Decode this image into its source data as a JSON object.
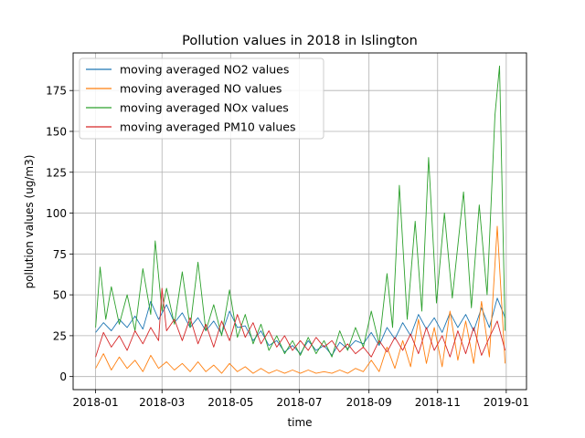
{
  "chart_data": {
    "type": "line",
    "title": "Pollution values in 2018 in Islington",
    "xlabel": "time",
    "ylabel": "pollution values (ug/m3)",
    "xlim": [
      "2017-12-12",
      "2019-01-19"
    ],
    "ylim": [
      -8,
      198
    ],
    "grid": true,
    "legend_position": "upper left",
    "xticks": [
      "2018-01",
      "2018-03",
      "2018-05",
      "2018-07",
      "2018-09",
      "2018-11",
      "2019-01"
    ],
    "yticks": [
      0,
      25,
      50,
      75,
      100,
      125,
      150,
      175
    ],
    "series": [
      {
        "name": "moving averaged NO2 values",
        "color": "#1f77b4",
        "points": [
          [
            "2018-01-01",
            27
          ],
          [
            "2018-01-08",
            33
          ],
          [
            "2018-01-15",
            28
          ],
          [
            "2018-01-22",
            35
          ],
          [
            "2018-01-29",
            30
          ],
          [
            "2018-02-05",
            37
          ],
          [
            "2018-02-12",
            29
          ],
          [
            "2018-02-19",
            46
          ],
          [
            "2018-02-26",
            35
          ],
          [
            "2018-03-05",
            44
          ],
          [
            "2018-03-12",
            33
          ],
          [
            "2018-03-19",
            39
          ],
          [
            "2018-03-26",
            30
          ],
          [
            "2018-04-02",
            36
          ],
          [
            "2018-04-09",
            28
          ],
          [
            "2018-04-16",
            34
          ],
          [
            "2018-04-23",
            26
          ],
          [
            "2018-04-30",
            40
          ],
          [
            "2018-05-07",
            30
          ],
          [
            "2018-05-14",
            31
          ],
          [
            "2018-05-21",
            22
          ],
          [
            "2018-05-28",
            28
          ],
          [
            "2018-06-04",
            19
          ],
          [
            "2018-06-11",
            22
          ],
          [
            "2018-06-18",
            15
          ],
          [
            "2018-06-25",
            19
          ],
          [
            "2018-07-02",
            14
          ],
          [
            "2018-07-09",
            22
          ],
          [
            "2018-07-16",
            16
          ],
          [
            "2018-07-23",
            19
          ],
          [
            "2018-07-30",
            13
          ],
          [
            "2018-08-06",
            21
          ],
          [
            "2018-08-13",
            17
          ],
          [
            "2018-08-20",
            22
          ],
          [
            "2018-08-27",
            20
          ],
          [
            "2018-09-03",
            27
          ],
          [
            "2018-09-10",
            19
          ],
          [
            "2018-09-17",
            30
          ],
          [
            "2018-09-24",
            23
          ],
          [
            "2018-10-01",
            33
          ],
          [
            "2018-10-08",
            25
          ],
          [
            "2018-10-15",
            38
          ],
          [
            "2018-10-22",
            29
          ],
          [
            "2018-10-29",
            36
          ],
          [
            "2018-11-05",
            27
          ],
          [
            "2018-11-12",
            39
          ],
          [
            "2018-11-19",
            30
          ],
          [
            "2018-11-26",
            38
          ],
          [
            "2018-12-03",
            28
          ],
          [
            "2018-12-10",
            42
          ],
          [
            "2018-12-17",
            30
          ],
          [
            "2018-12-24",
            48
          ],
          [
            "2018-12-31",
            36
          ]
        ]
      },
      {
        "name": "moving averaged NO values",
        "color": "#ff7f0e",
        "points": [
          [
            "2018-01-01",
            5
          ],
          [
            "2018-01-08",
            14
          ],
          [
            "2018-01-15",
            4
          ],
          [
            "2018-01-22",
            12
          ],
          [
            "2018-01-29",
            5
          ],
          [
            "2018-02-05",
            10
          ],
          [
            "2018-02-12",
            3
          ],
          [
            "2018-02-19",
            13
          ],
          [
            "2018-02-26",
            5
          ],
          [
            "2018-03-05",
            9
          ],
          [
            "2018-03-12",
            4
          ],
          [
            "2018-03-19",
            8
          ],
          [
            "2018-03-26",
            3
          ],
          [
            "2018-04-02",
            9
          ],
          [
            "2018-04-09",
            3
          ],
          [
            "2018-04-16",
            7
          ],
          [
            "2018-04-23",
            2
          ],
          [
            "2018-04-30",
            8
          ],
          [
            "2018-05-07",
            3
          ],
          [
            "2018-05-14",
            6
          ],
          [
            "2018-05-21",
            2
          ],
          [
            "2018-05-28",
            5
          ],
          [
            "2018-06-04",
            2
          ],
          [
            "2018-06-11",
            4
          ],
          [
            "2018-06-18",
            2
          ],
          [
            "2018-06-25",
            4
          ],
          [
            "2018-07-02",
            2
          ],
          [
            "2018-07-09",
            4
          ],
          [
            "2018-07-16",
            2
          ],
          [
            "2018-07-23",
            3
          ],
          [
            "2018-07-30",
            2
          ],
          [
            "2018-08-06",
            4
          ],
          [
            "2018-08-13",
            2
          ],
          [
            "2018-08-20",
            5
          ],
          [
            "2018-08-27",
            3
          ],
          [
            "2018-09-03",
            10
          ],
          [
            "2018-09-10",
            3
          ],
          [
            "2018-09-17",
            18
          ],
          [
            "2018-09-24",
            5
          ],
          [
            "2018-10-01",
            22
          ],
          [
            "2018-10-08",
            6
          ],
          [
            "2018-10-15",
            35
          ],
          [
            "2018-10-22",
            8
          ],
          [
            "2018-10-29",
            30
          ],
          [
            "2018-11-05",
            6
          ],
          [
            "2018-11-12",
            40
          ],
          [
            "2018-11-19",
            10
          ],
          [
            "2018-11-26",
            34
          ],
          [
            "2018-12-03",
            8
          ],
          [
            "2018-12-10",
            46
          ],
          [
            "2018-12-17",
            12
          ],
          [
            "2018-12-24",
            92
          ],
          [
            "2018-12-31",
            8
          ]
        ]
      },
      {
        "name": "moving averaged NOx values",
        "color": "#2ca02c",
        "points": [
          [
            "2018-01-01",
            30
          ],
          [
            "2018-01-05",
            67
          ],
          [
            "2018-01-10",
            35
          ],
          [
            "2018-01-15",
            55
          ],
          [
            "2018-01-22",
            32
          ],
          [
            "2018-01-29",
            50
          ],
          [
            "2018-02-05",
            28
          ],
          [
            "2018-02-12",
            66
          ],
          [
            "2018-02-19",
            38
          ],
          [
            "2018-02-23",
            83
          ],
          [
            "2018-03-01",
            40
          ],
          [
            "2018-03-05",
            54
          ],
          [
            "2018-03-12",
            32
          ],
          [
            "2018-03-19",
            64
          ],
          [
            "2018-03-26",
            30
          ],
          [
            "2018-04-02",
            70
          ],
          [
            "2018-04-09",
            28
          ],
          [
            "2018-04-16",
            44
          ],
          [
            "2018-04-23",
            25
          ],
          [
            "2018-04-30",
            53
          ],
          [
            "2018-05-07",
            24
          ],
          [
            "2018-05-14",
            38
          ],
          [
            "2018-05-21",
            20
          ],
          [
            "2018-05-28",
            32
          ],
          [
            "2018-06-04",
            16
          ],
          [
            "2018-06-11",
            25
          ],
          [
            "2018-06-18",
            14
          ],
          [
            "2018-06-25",
            22
          ],
          [
            "2018-07-02",
            13
          ],
          [
            "2018-07-09",
            24
          ],
          [
            "2018-07-16",
            14
          ],
          [
            "2018-07-23",
            22
          ],
          [
            "2018-07-30",
            12
          ],
          [
            "2018-08-06",
            28
          ],
          [
            "2018-08-13",
            16
          ],
          [
            "2018-08-20",
            30
          ],
          [
            "2018-08-27",
            18
          ],
          [
            "2018-09-03",
            40
          ],
          [
            "2018-09-10",
            20
          ],
          [
            "2018-09-17",
            63
          ],
          [
            "2018-09-22",
            30
          ],
          [
            "2018-09-28",
            117
          ],
          [
            "2018-10-05",
            35
          ],
          [
            "2018-10-12",
            95
          ],
          [
            "2018-10-18",
            40
          ],
          [
            "2018-10-24",
            134
          ],
          [
            "2018-10-31",
            45
          ],
          [
            "2018-11-07",
            100
          ],
          [
            "2018-11-14",
            48
          ],
          [
            "2018-11-24",
            113
          ],
          [
            "2018-12-01",
            42
          ],
          [
            "2018-12-08",
            105
          ],
          [
            "2018-12-15",
            50
          ],
          [
            "2018-12-22",
            160
          ],
          [
            "2018-12-26",
            190
          ],
          [
            "2018-12-31",
            28
          ]
        ]
      },
      {
        "name": "moving averaged PM10 values",
        "color": "#d62728",
        "points": [
          [
            "2018-01-01",
            12
          ],
          [
            "2018-01-08",
            27
          ],
          [
            "2018-01-15",
            18
          ],
          [
            "2018-01-22",
            25
          ],
          [
            "2018-01-29",
            16
          ],
          [
            "2018-02-05",
            28
          ],
          [
            "2018-02-12",
            20
          ],
          [
            "2018-02-19",
            30
          ],
          [
            "2018-02-26",
            22
          ],
          [
            "2018-03-01",
            54
          ],
          [
            "2018-03-05",
            28
          ],
          [
            "2018-03-12",
            35
          ],
          [
            "2018-03-19",
            22
          ],
          [
            "2018-03-26",
            36
          ],
          [
            "2018-04-02",
            20
          ],
          [
            "2018-04-09",
            32
          ],
          [
            "2018-04-16",
            18
          ],
          [
            "2018-04-23",
            34
          ],
          [
            "2018-04-30",
            22
          ],
          [
            "2018-05-07",
            38
          ],
          [
            "2018-05-14",
            24
          ],
          [
            "2018-05-21",
            33
          ],
          [
            "2018-05-28",
            20
          ],
          [
            "2018-06-04",
            28
          ],
          [
            "2018-06-11",
            18
          ],
          [
            "2018-06-18",
            25
          ],
          [
            "2018-06-25",
            16
          ],
          [
            "2018-07-02",
            22
          ],
          [
            "2018-07-09",
            16
          ],
          [
            "2018-07-16",
            24
          ],
          [
            "2018-07-23",
            18
          ],
          [
            "2018-07-30",
            22
          ],
          [
            "2018-08-06",
            15
          ],
          [
            "2018-08-13",
            20
          ],
          [
            "2018-08-20",
            14
          ],
          [
            "2018-08-27",
            18
          ],
          [
            "2018-09-03",
            12
          ],
          [
            "2018-09-10",
            22
          ],
          [
            "2018-09-17",
            15
          ],
          [
            "2018-09-24",
            24
          ],
          [
            "2018-10-01",
            16
          ],
          [
            "2018-10-08",
            26
          ],
          [
            "2018-10-15",
            14
          ],
          [
            "2018-10-22",
            30
          ],
          [
            "2018-10-29",
            16
          ],
          [
            "2018-11-05",
            25
          ],
          [
            "2018-11-12",
            12
          ],
          [
            "2018-11-19",
            28
          ],
          [
            "2018-11-26",
            14
          ],
          [
            "2018-12-03",
            30
          ],
          [
            "2018-12-10",
            13
          ],
          [
            "2018-12-17",
            24
          ],
          [
            "2018-12-24",
            34
          ],
          [
            "2018-12-31",
            16
          ]
        ]
      }
    ]
  }
}
